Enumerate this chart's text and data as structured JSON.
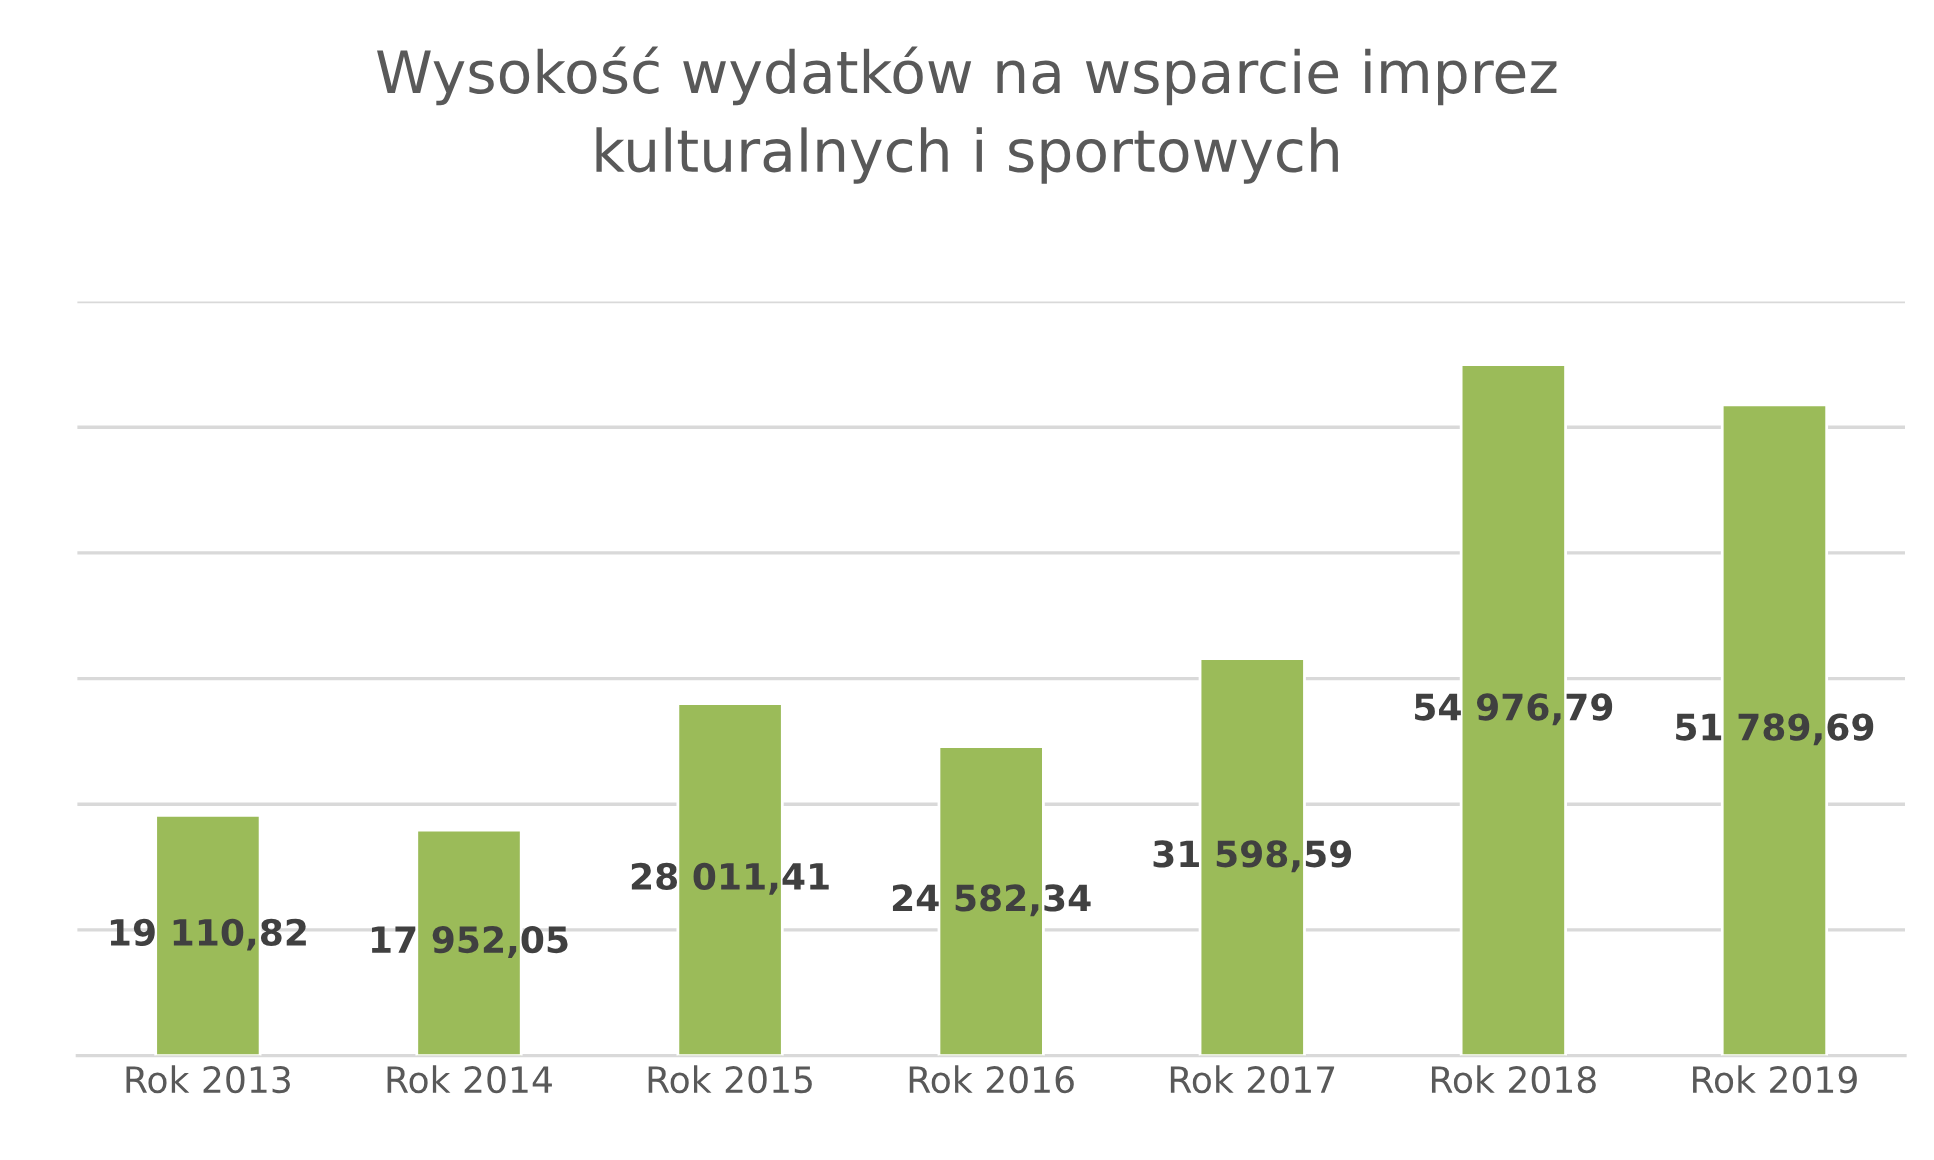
{
  "chart_data": {
    "type": "bar",
    "title": "Wysokość wydatków na wsparcie imprez\nkulturalnych i sportowych",
    "categories": [
      "Rok 2013",
      "Rok 2014",
      "Rok 2015",
      "Rok 2016",
      "Rok 2017",
      "Rok 2018",
      "Rok 2019"
    ],
    "values": [
      19110.82,
      17952.05,
      28011.41,
      24582.34,
      31598.59,
      54976.79,
      51789.69
    ],
    "value_labels": [
      "19 110,82",
      "17 952,05",
      "28 011,41",
      "24 582,34",
      "31 598,59",
      "54 976,79",
      "51 789,69"
    ],
    "color": "#9bbb59",
    "ylim": [
      0,
      60000
    ],
    "yticks": [
      {
        "value": 0,
        "label": null
      },
      {
        "value": 10000,
        "label": null
      },
      {
        "value": 20000,
        "label": null
      },
      {
        "value": 30000,
        "label": null
      },
      {
        "value": 40000,
        "label": null
      },
      {
        "value": 50000,
        "label": null
      },
      {
        "value": 60000,
        "label": null
      }
    ],
    "grid": "y",
    "tick_labels": "x"
  }
}
